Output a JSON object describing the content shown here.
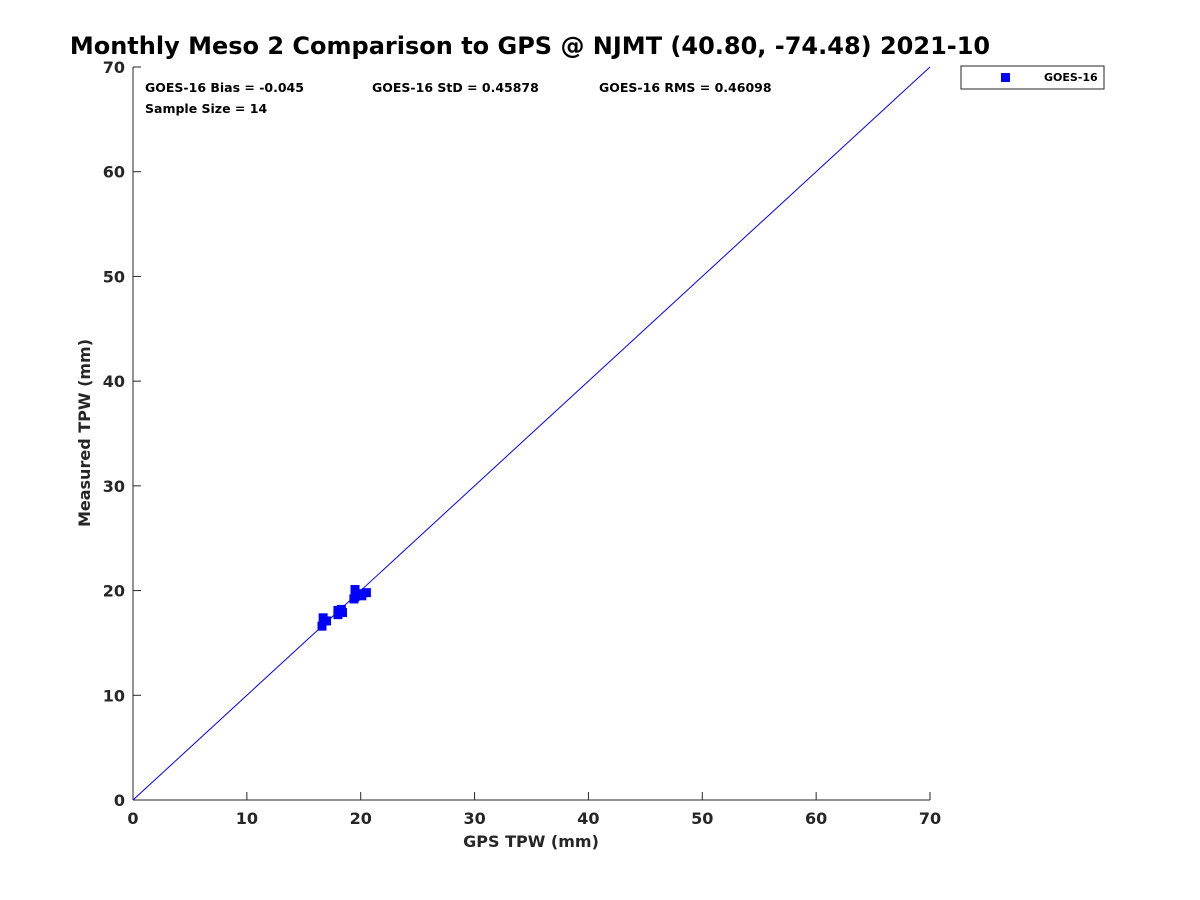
{
  "chart_data": {
    "type": "scatter",
    "title": "Monthly Meso 2 Comparison to GPS @ NJMT (40.80, -74.48) 2021-10",
    "xlabel": "GPS TPW (mm)",
    "ylabel": "Measured TPW (mm)",
    "xlim": [
      0,
      70
    ],
    "ylim": [
      0,
      70
    ],
    "xticks": [
      0,
      10,
      20,
      30,
      40,
      50,
      60,
      70
    ],
    "yticks": [
      0,
      10,
      20,
      30,
      40,
      50,
      60,
      70
    ],
    "grid": false,
    "legend_position": "outside-top-right",
    "reference_line": {
      "from": [
        0,
        0
      ],
      "to": [
        70,
        70
      ],
      "color": "#0000ff"
    },
    "stats": {
      "bias": "GOES-16 Bias = -0.045",
      "std": "GOES-16 StD = 0.45878",
      "rms": "GOES-16 RMS = 0.46098",
      "sample_size": "Sample Size = 14"
    },
    "series": [
      {
        "name": "GOES-16",
        "color": "#0000ff",
        "marker": "square",
        "points": [
          [
            16.6,
            16.6
          ],
          [
            16.7,
            17.4
          ],
          [
            17.0,
            17.1
          ],
          [
            18.0,
            17.7
          ],
          [
            18.0,
            18.1
          ],
          [
            18.3,
            18.2
          ],
          [
            18.4,
            17.9
          ],
          [
            19.4,
            19.2
          ],
          [
            19.5,
            20.1
          ],
          [
            19.6,
            19.6
          ],
          [
            19.9,
            19.7
          ],
          [
            20.1,
            19.5
          ],
          [
            20.5,
            19.8
          ],
          [
            19.5,
            19.4
          ]
        ]
      }
    ]
  }
}
